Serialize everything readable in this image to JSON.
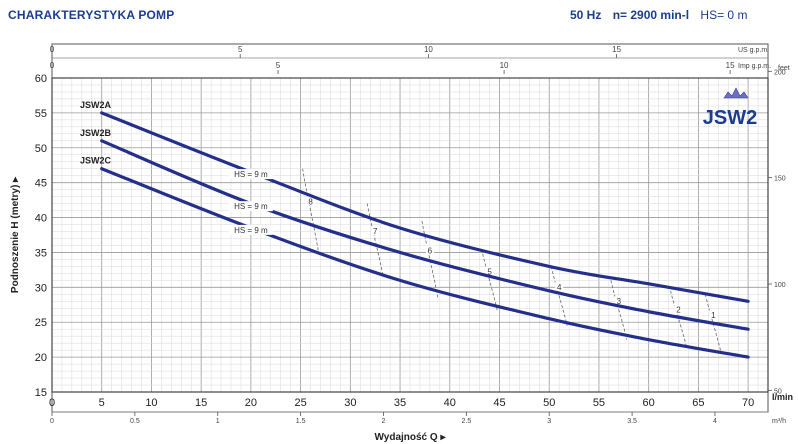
{
  "header": {
    "title": "CHARAKTERYSTYKA POMP",
    "freq": "50 Hz",
    "speed": "n= 2900 min-l",
    "suction": "HS= 0 m"
  },
  "colors": {
    "accent": "#1a3d8f",
    "curve": "#232f8a",
    "grid_minor": "#d8d8d8",
    "grid_major": "#9a9a9a",
    "hs_line": "#666666"
  },
  "chart_data": {
    "type": "line",
    "title": "CHARAKTERYSTYKA POMP",
    "logo": "JSW2",
    "xlabel": "Wydajność Q",
    "ylabel": "Podnoszenie H (metry)",
    "xlim": [
      0,
      72
    ],
    "ylim": [
      15,
      60
    ],
    "grid": true,
    "x_unit": "l/min",
    "x_ticks": [
      0,
      5,
      10,
      15,
      20,
      25,
      30,
      35,
      40,
      45,
      50,
      55,
      60,
      65,
      70
    ],
    "y_ticks": [
      15,
      20,
      25,
      30,
      35,
      40,
      45,
      50,
      55,
      60
    ],
    "m3h_unit": "m³/h",
    "m3h_ticks": [
      0,
      0.5,
      1,
      1.5,
      2,
      2.5,
      3,
      3.5,
      4
    ],
    "usgpm_unit": "US g.p.m.",
    "usgpm_ticks": [
      0,
      5,
      10,
      15
    ],
    "impgpm_unit": "Imp g.p.m.",
    "impgpm_ticks": [
      0,
      5,
      10,
      15
    ],
    "feet_unit": "feet",
    "feet_ticks": [
      50,
      100,
      150,
      200
    ],
    "series": [
      {
        "name": "JSW2A",
        "x": [
          5,
          20,
          35,
          50,
          60,
          70
        ],
        "y": [
          55,
          46.5,
          38.5,
          33,
          30.5,
          28
        ]
      },
      {
        "name": "JSW2B",
        "x": [
          5,
          20,
          35,
          50,
          60,
          70
        ],
        "y": [
          51,
          42,
          35,
          29.5,
          26.5,
          24
        ]
      },
      {
        "name": "JSW2C",
        "x": [
          5,
          20,
          35,
          50,
          60,
          70
        ],
        "y": [
          47,
          38.5,
          31,
          25.5,
          22.5,
          20
        ]
      }
    ],
    "hs_labels": [
      {
        "text": "HS = 9 m",
        "x": 20,
        "y": 45.8
      },
      {
        "text": "HS = 9 m",
        "x": 20,
        "y": 41.2
      },
      {
        "text": "HS = 9 m",
        "x": 20,
        "y": 37.8
      }
    ],
    "hs_lines": [
      {
        "label": "8",
        "x": 26,
        "y_top": 47,
        "y_bottom": 35
      },
      {
        "label": "7",
        "x": 32.5,
        "y_top": 42,
        "y_bottom": 31.5
      },
      {
        "label": "6",
        "x": 38,
        "y_top": 39.5,
        "y_bottom": 28.5
      },
      {
        "label": "5",
        "x": 44,
        "y_top": 35.5,
        "y_bottom": 26.5
      },
      {
        "label": "4",
        "x": 51,
        "y_top": 33,
        "y_bottom": 24.5
      },
      {
        "label": "3",
        "x": 57,
        "y_top": 31,
        "y_bottom": 22.5
      },
      {
        "label": "2",
        "x": 63,
        "y_top": 29.5,
        "y_bottom": 21.5
      },
      {
        "label": "1",
        "x": 66.5,
        "y_top": 29,
        "y_bottom": 20.5
      }
    ]
  }
}
